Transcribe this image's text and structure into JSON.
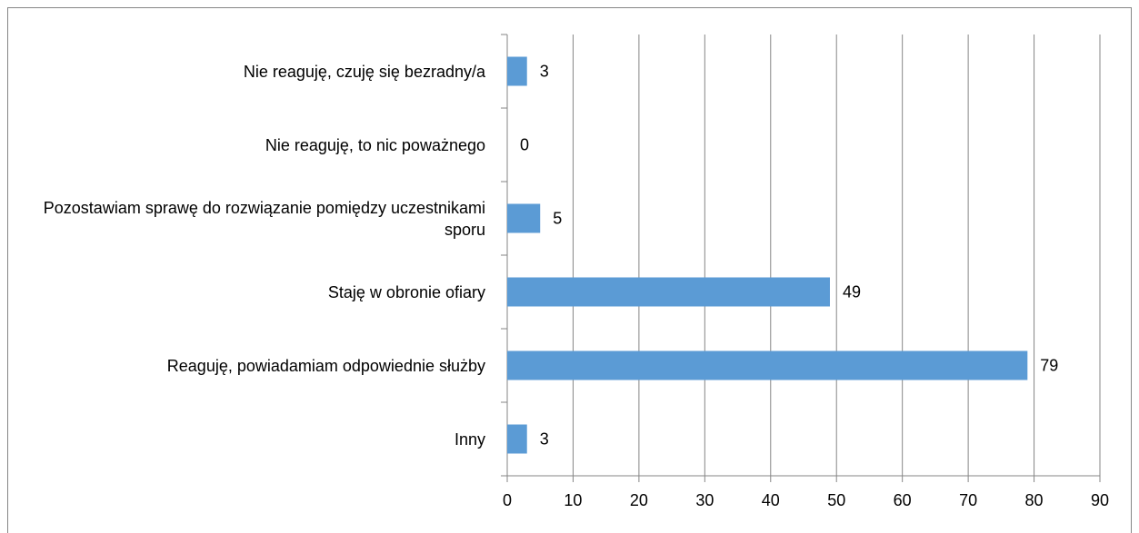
{
  "chart_data": {
    "type": "bar",
    "orientation": "horizontal",
    "categories": [
      "Nie reaguję, czuję się bezradny/a",
      "Nie reaguję, to nic poważnego",
      "Pozostawiam sprawę do rozwiązanie pomiędzy uczestnikami sporu",
      "Staję w obronie ofiary",
      "Reaguję, powiadamiam odpowiednie służby",
      "Inny"
    ],
    "values": [
      3,
      0,
      5,
      49,
      79,
      3
    ],
    "color": "#5b9bd5",
    "xlim": [
      0,
      90
    ],
    "xticks": [
      0,
      10,
      20,
      30,
      40,
      50,
      60,
      70,
      80,
      90
    ],
    "grid": true
  }
}
